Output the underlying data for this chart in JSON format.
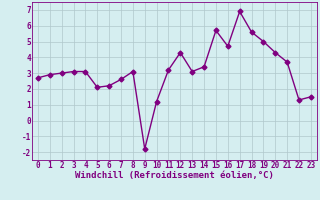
{
  "x": [
    0,
    1,
    2,
    3,
    4,
    5,
    6,
    7,
    8,
    9,
    10,
    11,
    12,
    13,
    14,
    15,
    16,
    17,
    18,
    19,
    20,
    21,
    22,
    23
  ],
  "y": [
    2.7,
    2.9,
    3.0,
    3.1,
    3.1,
    2.1,
    2.2,
    2.6,
    3.1,
    -1.8,
    1.2,
    3.2,
    4.3,
    3.1,
    3.4,
    5.7,
    4.7,
    6.9,
    5.6,
    5.0,
    4.3,
    3.7,
    1.3,
    1.5
  ],
  "line_color": "#800080",
  "marker": "D",
  "markersize": 2.5,
  "linewidth": 1.0,
  "xlabel": "Windchill (Refroidissement éolien,°C)",
  "xlabel_fontsize": 6.5,
  "background_color": "#d5eef0",
  "grid_color": "#b0c8cc",
  "ylim": [
    -2.5,
    7.5
  ],
  "xlim": [
    -0.5,
    23.5
  ],
  "yticks": [
    -2,
    -1,
    0,
    1,
    2,
    3,
    4,
    5,
    6,
    7
  ],
  "xtick_labels": [
    "0",
    "1",
    "2",
    "3",
    "4",
    "5",
    "6",
    "7",
    "8",
    "9",
    "10",
    "11",
    "12",
    "13",
    "14",
    "15",
    "16",
    "17",
    "18",
    "19",
    "20",
    "21",
    "22",
    "23"
  ],
  "tick_fontsize": 5.5,
  "tick_color": "#800080",
  "spine_color": "#800080"
}
